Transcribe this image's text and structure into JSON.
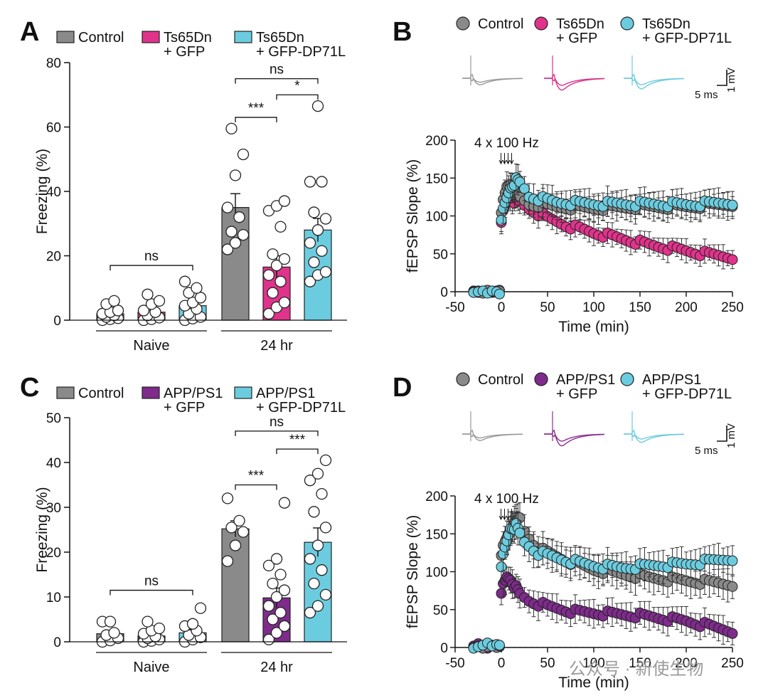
{
  "colors": {
    "control": "#8a8a8a",
    "ts_gfp": "#e0338b",
    "app_gfp": "#7f2b8c",
    "dp71l": "#6cccdf",
    "ts_gfp_trace": "#d93189",
    "app_gfp_trace": "#8a2f92",
    "dp71l_trace": "#6cccdf",
    "control_trace": "#9a9a9a"
  },
  "watermark": "公众号 · 新使生物",
  "chart_data": [
    {
      "id": "A",
      "panel_label": "A",
      "type": "bar",
      "legend": [
        {
          "line1": "Control",
          "line2": "",
          "color_key": "control"
        },
        {
          "line1": "Ts65Dn",
          "line2": "+ GFP",
          "color_key": "ts_gfp"
        },
        {
          "line1": "Ts65Dn",
          "line2": "+ GFP-DP71L",
          "color_key": "dp71l"
        }
      ],
      "ylabel": "Freezing (%)",
      "ylim": [
        0,
        80
      ],
      "yticks": [
        0,
        20,
        40,
        60,
        80
      ],
      "groups": [
        {
          "label": "Naive",
          "bars": [
            {
              "color_key": "control",
              "mean": 2.0,
              "sem": 0.8,
              "points": [
                0,
                0.3,
                0.6,
                1.0,
                1.5,
                2.0,
                2.5,
                3.0,
                5.0,
                6.0
              ]
            },
            {
              "color_key": "ts_gfp",
              "mean": 2.5,
              "sem": 1.0,
              "points": [
                0,
                0.3,
                0.8,
                1.5,
                2.5,
                3.0,
                5.0,
                6.0,
                8.0
              ]
            },
            {
              "color_key": "dp71l",
              "mean": 4.5,
              "sem": 1.2,
              "points": [
                0,
                0.5,
                1.0,
                2.0,
                3.5,
                4.5,
                5.5,
                7.0,
                8.5,
                10.0,
                12.0
              ]
            }
          ]
        },
        {
          "label": "24 hr",
          "bars": [
            {
              "color_key": "control",
              "mean": 35.0,
              "sem": 4.3,
              "points": [
                22.0,
                24.0,
                26.5,
                27.5,
                32.0,
                35.0,
                45.0,
                51.5,
                59.5
              ]
            },
            {
              "color_key": "ts_gfp",
              "mean": 16.5,
              "sem": 3.5,
              "points": [
                2.0,
                4.0,
                5.5,
                8.5,
                12.0,
                14.0,
                17.0,
                19.0,
                20.5,
                29.0,
                34.0,
                35.5,
                37.0
              ]
            },
            {
              "color_key": "dp71l",
              "mean": 28.0,
              "sem": 3.6,
              "points": [
                12.0,
                14.0,
                15.0,
                18.0,
                21.5,
                24.0,
                28.0,
                31.5,
                33.5,
                43.0,
                43.0,
                66.5
              ]
            }
          ]
        }
      ],
      "significance": [
        {
          "group": 0,
          "from": 0,
          "to": 2,
          "label": "ns",
          "y": 17
        },
        {
          "group": 1,
          "from": 0,
          "to": 2,
          "label": "ns",
          "y": 75
        },
        {
          "group": 1,
          "from": 1,
          "to": 2,
          "label": "*",
          "y": 70
        },
        {
          "group": 1,
          "from": 0,
          "to": 1,
          "label": "***",
          "y": 63
        }
      ]
    },
    {
      "id": "B",
      "panel_label": "B",
      "type": "scatter",
      "legend": [
        {
          "line1": "Control",
          "line2": "",
          "color_key": "control"
        },
        {
          "line1": "Ts65Dn",
          "line2": "+ GFP",
          "color_key": "ts_gfp"
        },
        {
          "line1": "Ts65Dn",
          "line2": "+ GFP-DP71L",
          "color_key": "dp71l"
        }
      ],
      "stim_label": "4 x 100 Hz",
      "scale_bar": {
        "x_label": "5 ms",
        "y_label": "1 mV"
      },
      "traces": [
        {
          "color_key": "control_trace",
          "amplitude": 0.55
        },
        {
          "color_key": "ts_gfp_trace",
          "amplitude": 1.0
        },
        {
          "color_key": "dp71l_trace",
          "amplitude": 0.9
        }
      ],
      "xlabel": "Time (min)",
      "ylabel": "fEPSP Slope (%)",
      "xlim": [
        -50,
        250
      ],
      "ylim": [
        0,
        200
      ],
      "xticks": [
        -50,
        0,
        50,
        100,
        150,
        200,
        250
      ],
      "yticks": [
        0,
        50,
        100,
        150,
        200
      ],
      "baseline_x": [
        -30,
        -25,
        -20,
        -15,
        -10,
        -5,
        -2
      ],
      "series": [
        {
          "name": "Control",
          "color_key": "control",
          "order": 1,
          "baseline": [
            0,
            1,
            -2,
            2,
            0,
            -1,
            1
          ],
          "knots": [
            [
              0,
              108
            ],
            [
              6,
              138
            ],
            [
              10,
              142
            ],
            [
              16,
              128
            ],
            [
              30,
              116
            ],
            [
              60,
              112
            ],
            [
              100,
              110
            ],
            [
              150,
              112
            ],
            [
              200,
              112
            ],
            [
              250,
              116
            ]
          ],
          "err_base": 13
        },
        {
          "name": "Ts65Dn + GFP",
          "color_key": "ts_gfp",
          "order": 0,
          "baseline": [
            1,
            -1,
            0,
            2,
            -1,
            1,
            2
          ],
          "knots": [
            [
              0,
              95
            ],
            [
              6,
              120
            ],
            [
              10,
              122
            ],
            [
              20,
              118
            ],
            [
              30,
              110
            ],
            [
              50,
              97
            ],
            [
              70,
              88
            ],
            [
              100,
              78
            ],
            [
              130,
              70
            ],
            [
              160,
              62
            ],
            [
              190,
              56
            ],
            [
              220,
              50
            ],
            [
              250,
              46
            ]
          ],
          "err_base": 10
        },
        {
          "name": "Ts65Dn + GFP-DP71L",
          "color_key": "dp71l",
          "order": 2,
          "baseline": [
            -1,
            0,
            1,
            -2,
            1,
            0,
            -3
          ],
          "knots": [
            [
              0,
              98
            ],
            [
              4,
              115
            ],
            [
              10,
              138
            ],
            [
              16,
              147
            ],
            [
              22,
              142
            ],
            [
              30,
              126
            ],
            [
              60,
              118
            ],
            [
              100,
              116
            ],
            [
              150,
              116
            ],
            [
              200,
              115
            ],
            [
              250,
              118
            ]
          ],
          "err_base": 14
        }
      ]
    },
    {
      "id": "C",
      "panel_label": "C",
      "type": "bar",
      "legend": [
        {
          "line1": "Control",
          "line2": "",
          "color_key": "control"
        },
        {
          "line1": "APP/PS1",
          "line2": "+ GFP",
          "color_key": "app_gfp"
        },
        {
          "line1": "APP/PS1",
          "line2": "+ GFP-DP71L",
          "color_key": "dp71l"
        }
      ],
      "ylabel": "Freezing (%)",
      "ylim": [
        0,
        50
      ],
      "yticks": [
        0,
        10,
        20,
        30,
        40,
        50
      ],
      "groups": [
        {
          "label": "Naive",
          "bars": [
            {
              "color_key": "control",
              "mean": 1.8,
              "sem": 0.7,
              "points": [
                0,
                0.3,
                0.8,
                1.5,
                2.0,
                4.5,
                4.5
              ]
            },
            {
              "color_key": "app_gfp",
              "mean": 1.3,
              "sem": 0.6,
              "points": [
                0,
                0.2,
                0.5,
                0.8,
                1.2,
                1.8,
                2.5,
                3.0,
                4.5
              ]
            },
            {
              "color_key": "dp71l",
              "mean": 2.0,
              "sem": 0.8,
              "points": [
                0,
                0.5,
                1.0,
                1.5,
                2.5,
                3.5,
                4.0,
                7.5
              ]
            }
          ]
        },
        {
          "label": "24 hr",
          "bars": [
            {
              "color_key": "control",
              "mean": 25.2,
              "sem": 1.8,
              "points": [
                18.0,
                21.5,
                24.5,
                25.5,
                27.0,
                32.0
              ]
            },
            {
              "color_key": "app_gfp",
              "mean": 9.8,
              "sem": 2.2,
              "points": [
                0.5,
                2.0,
                3.5,
                5.0,
                6.5,
                8.0,
                10.0,
                11.5,
                13.0,
                15.0,
                17.0,
                18.5,
                31.0
              ]
            },
            {
              "color_key": "dp71l",
              "mean": 22.2,
              "sem": 3.2,
              "points": [
                6.5,
                8.0,
                10.5,
                13.0,
                16.0,
                18.5,
                21.5,
                25.5,
                29.0,
                33.0,
                36.0,
                37.5,
                40.5
              ]
            }
          ]
        }
      ],
      "significance": [
        {
          "group": 0,
          "from": 0,
          "to": 2,
          "label": "ns",
          "y": 11.5
        },
        {
          "group": 1,
          "from": 0,
          "to": 2,
          "label": "ns",
          "y": 47
        },
        {
          "group": 1,
          "from": 1,
          "to": 2,
          "label": "***",
          "y": 43
        },
        {
          "group": 1,
          "from": 0,
          "to": 1,
          "label": "***",
          "y": 35
        }
      ]
    },
    {
      "id": "D",
      "panel_label": "D",
      "type": "scatter",
      "legend": [
        {
          "line1": "Control",
          "line2": "",
          "color_key": "control"
        },
        {
          "line1": "APP/PS1",
          "line2": "+ GFP",
          "color_key": "app_gfp"
        },
        {
          "line1": "APP/PS1",
          "line2": "+ GFP-DP71L",
          "color_key": "dp71l"
        }
      ],
      "stim_label": "4 x 100 Hz",
      "scale_bar": {
        "x_label": "5 ms",
        "y_label": "1 mV"
      },
      "traces": [
        {
          "color_key": "control_trace",
          "amplitude": 0.55
        },
        {
          "color_key": "app_gfp_trace",
          "amplitude": 1.0
        },
        {
          "color_key": "dp71l_trace",
          "amplitude": 0.7
        }
      ],
      "xlabel": "Time (min)",
      "ylabel": "fEPSP Slope (%)",
      "xlim": [
        -50,
        250
      ],
      "ylim": [
        0,
        200
      ],
      "xticks": [
        -50,
        0,
        50,
        100,
        150,
        200,
        250
      ],
      "yticks": [
        0,
        50,
        100,
        150,
        200
      ],
      "baseline_x": [
        -30,
        -25,
        -20,
        -15,
        -10,
        -5,
        -2
      ],
      "series": [
        {
          "name": "Control",
          "color_key": "control",
          "order": 1,
          "baseline": [
            0,
            2,
            -1,
            1,
            3,
            0,
            2
          ],
          "knots": [
            [
              0,
              125
            ],
            [
              8,
              150
            ],
            [
              14,
              168
            ],
            [
              20,
              170
            ],
            [
              26,
              150
            ],
            [
              40,
              130
            ],
            [
              70,
              115
            ],
            [
              100,
              103
            ],
            [
              130,
              97
            ],
            [
              160,
              92
            ],
            [
              200,
              88
            ],
            [
              250,
              84
            ]
          ],
          "err_base": 16
        },
        {
          "name": "APP/PS1 + GFP",
          "color_key": "app_gfp",
          "order": 0,
          "baseline": [
            2,
            5,
            1,
            -1,
            3,
            0,
            1
          ],
          "knots": [
            [
              0,
              75
            ],
            [
              6,
              92
            ],
            [
              10,
              90
            ],
            [
              20,
              70
            ],
            [
              30,
              62
            ],
            [
              50,
              54
            ],
            [
              80,
              47
            ],
            [
              110,
              45
            ],
            [
              150,
              42
            ],
            [
              200,
              35
            ],
            [
              230,
              27
            ],
            [
              250,
              22
            ]
          ],
          "err_base": 13
        },
        {
          "name": "APP/PS1 + GFP-DP71L",
          "color_key": "dp71l",
          "order": 2,
          "baseline": [
            -1,
            1,
            3,
            6,
            2,
            4,
            3
          ],
          "knots": [
            [
              0,
              110
            ],
            [
              4,
              130
            ],
            [
              10,
              158
            ],
            [
              16,
              160
            ],
            [
              24,
              140
            ],
            [
              40,
              125
            ],
            [
              70,
              115
            ],
            [
              100,
              108
            ],
            [
              130,
              105
            ],
            [
              160,
              108
            ],
            [
              200,
              110
            ],
            [
              250,
              118
            ]
          ],
          "err_base": 16
        }
      ]
    }
  ]
}
